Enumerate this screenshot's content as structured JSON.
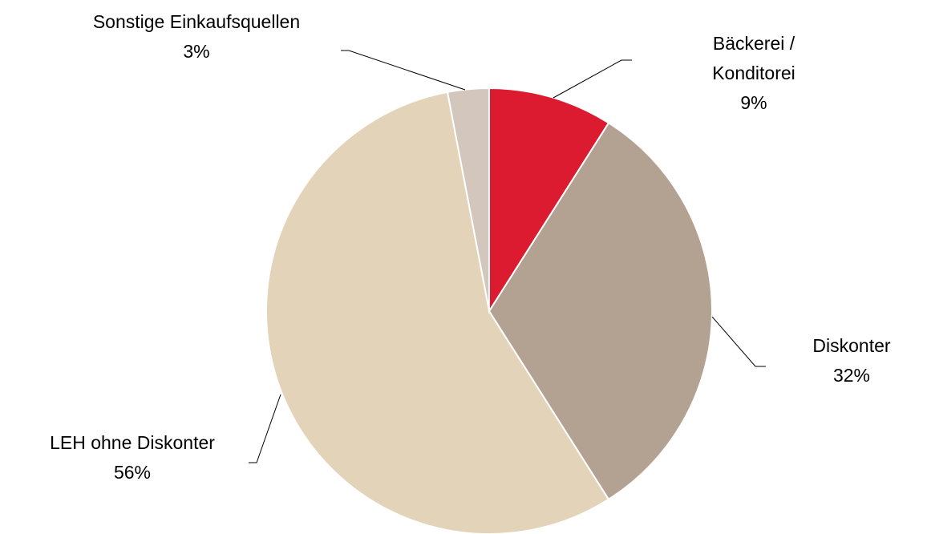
{
  "chart_data": {
    "type": "pie",
    "categories": [
      "Bäckerei / Konditorei",
      "Diskonter",
      "LEH ohne Diskonter",
      "Sonstige Einkaufsquellen"
    ],
    "values": [
      9,
      32,
      56,
      3
    ],
    "value_labels": [
      "9%",
      "32%",
      "56%",
      "3%"
    ],
    "colors": [
      "#dc1a30",
      "#b3a292",
      "#e3d3b8",
      "#d3c7bd"
    ]
  }
}
